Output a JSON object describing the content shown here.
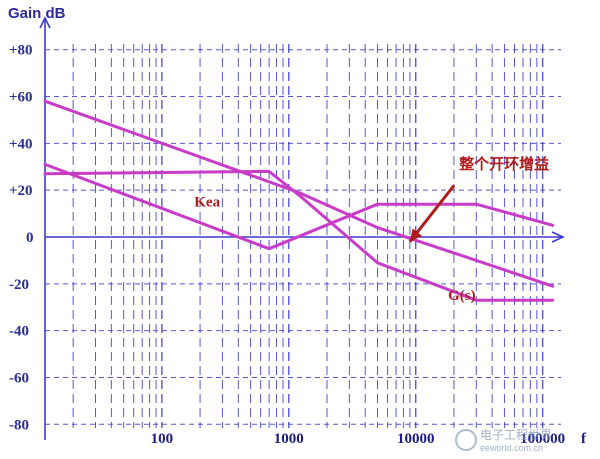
{
  "chart_data": {
    "type": "line",
    "title": "Gain dB",
    "xlabel": "f",
    "x_scale": "log",
    "xlim": [
      12,
      150000
    ],
    "ylim": [
      -85,
      85
    ],
    "x_tick_labels": [
      {
        "value": 100,
        "label": "100"
      },
      {
        "value": 1000,
        "label": "1000"
      },
      {
        "value": 10000,
        "label": "10000"
      },
      {
        "value": 100000,
        "label": "100000"
      }
    ],
    "y_tick_labels": [
      {
        "value": 80,
        "label": "+80"
      },
      {
        "value": 60,
        "label": "+60"
      },
      {
        "value": 40,
        "label": "+40"
      },
      {
        "value": 20,
        "label": "+20"
      },
      {
        "value": 0,
        "label": "0"
      },
      {
        "value": -20,
        "label": "-20"
      },
      {
        "value": -40,
        "label": "-40"
      },
      {
        "value": -60,
        "label": "-60"
      },
      {
        "value": -80,
        "label": "-80"
      }
    ],
    "grid": true,
    "series": [
      {
        "name": "",
        "color": "#c83cc8",
        "x": [
          12,
          1200,
          5000,
          30000,
          120000
        ],
        "y": [
          58,
          19,
          4,
          -10,
          -21
        ]
      },
      {
        "name": "Kea",
        "color": "#c83cc8",
        "x": [
          12,
          700,
          5000,
          30000,
          120000
        ],
        "y": [
          31,
          -5,
          14,
          14,
          5
        ]
      },
      {
        "name": "G(s)",
        "color": "#c83cc8",
        "x": [
          12,
          700,
          1200,
          5000,
          30000,
          120000
        ],
        "y": [
          27,
          28,
          18,
          -11,
          -27,
          -27
        ]
      }
    ],
    "annotations": [
      {
        "text": "Kea",
        "x": 180,
        "y": 13,
        "color": "#b01a1a"
      },
      {
        "text": "G(s)",
        "x": 18000,
        "y": -27,
        "color": "#b01a1a"
      },
      {
        "text": "整个开环增益",
        "x": 22000,
        "y": 29,
        "color": "#b01a1a"
      }
    ],
    "arrow": {
      "from": [
        20000,
        22
      ],
      "to": [
        9000,
        -2
      ],
      "color": "#b01a1a"
    },
    "axis_color": "#3a3ad0",
    "grid_color": "#3a3ad0"
  },
  "watermark": {
    "text": "电子工程世界",
    "subtext": "eeworld.com.cn"
  }
}
